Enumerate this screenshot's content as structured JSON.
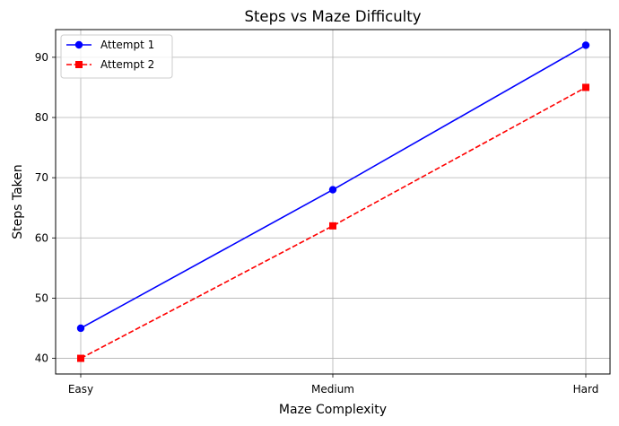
{
  "chart_data": {
    "type": "line",
    "title": "Steps vs Maze Difficulty",
    "xlabel": "Maze Complexity",
    "ylabel": "Steps Taken",
    "categories": [
      "Easy",
      "Medium",
      "Hard"
    ],
    "ylim": [
      37.4,
      94.6
    ],
    "yticks": [
      40,
      50,
      60,
      70,
      80,
      90
    ],
    "grid": true,
    "legend_position": "top-left",
    "series": [
      {
        "name": "Attempt 1",
        "values": [
          45,
          68,
          92
        ],
        "color": "#0000ff",
        "line_style": "solid",
        "marker": "circle"
      },
      {
        "name": "Attempt 2",
        "values": [
          40,
          62,
          85
        ],
        "color": "#ff0000",
        "line_style": "dashed",
        "marker": "square"
      }
    ]
  }
}
